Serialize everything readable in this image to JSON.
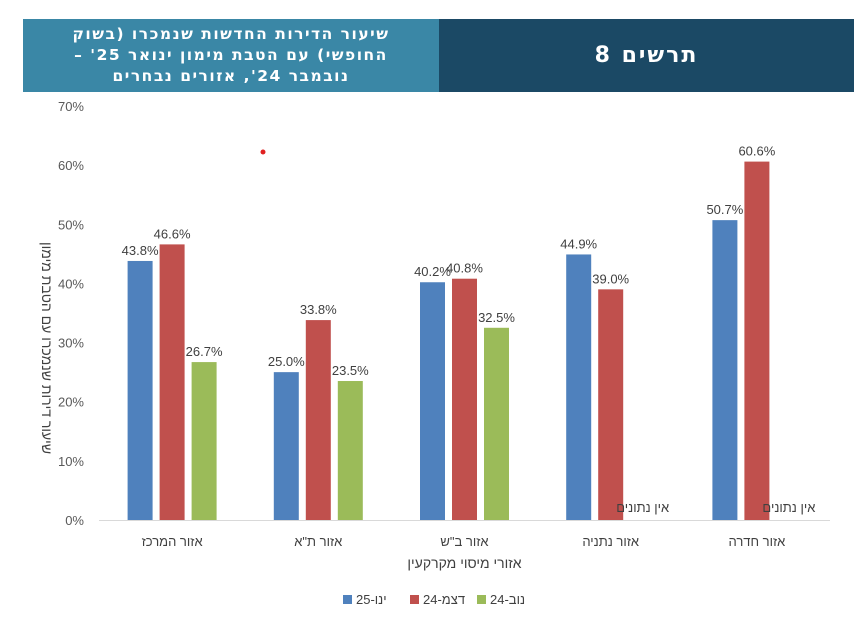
{
  "header": {
    "subtitle": "שיעור הדירות החדשות שנמכרו (בשוק החופשי) עם הטבת מימון ינואר 25' – נובמבר 24', אזורים נבחרים",
    "figure_label": "תרשים 8"
  },
  "chart_data": {
    "type": "bar",
    "title": "שיעור הדירות החדשות שנמכרו (בשוק החופשי) עם הטבת מימון ינואר 25' – נובמבר 24', אזורים נבחרים",
    "xlabel": "אזורי מיסוי מקרקעין",
    "ylabel": "שיעור דירות שנמכרו עם הטבת מימון",
    "ylim": [
      0,
      70
    ],
    "yticks": [
      0,
      10,
      20,
      30,
      40,
      50,
      60,
      70
    ],
    "ytick_labels": [
      "0%",
      "10%",
      "20%",
      "30%",
      "40%",
      "50%",
      "60%",
      "70%"
    ],
    "grid": false,
    "legend_position": "bottom",
    "categories": [
      "אזור המרכז",
      "אזור ת\"א",
      "אזור ב\"ש",
      "אזור נתניה",
      "אזור חדרה"
    ],
    "series": [
      {
        "name": "ינו-25",
        "color": "#4f81bd",
        "values": [
          43.8,
          25.0,
          40.2,
          44.9,
          50.7
        ],
        "labels": [
          "43.8%",
          "25.0%",
          "40.2%",
          "44.9%",
          "50.7%"
        ]
      },
      {
        "name": "דצמ-24",
        "color": "#c0504d",
        "values": [
          46.6,
          33.8,
          40.8,
          39.0,
          60.6
        ],
        "labels": [
          "46.6%",
          "33.8%",
          "40.8%",
          "39.0%",
          "60.6%"
        ]
      },
      {
        "name": "נוב-24",
        "color": "#9bbb59",
        "values": [
          26.7,
          23.5,
          32.5,
          null,
          null
        ],
        "labels": [
          "26.7%",
          "23.5%",
          "32.5%",
          "אין נתונים",
          "אין נתונים"
        ]
      }
    ],
    "legend_order": [
      "נוב-24",
      "דצמ-24",
      "ינו-25"
    ]
  }
}
